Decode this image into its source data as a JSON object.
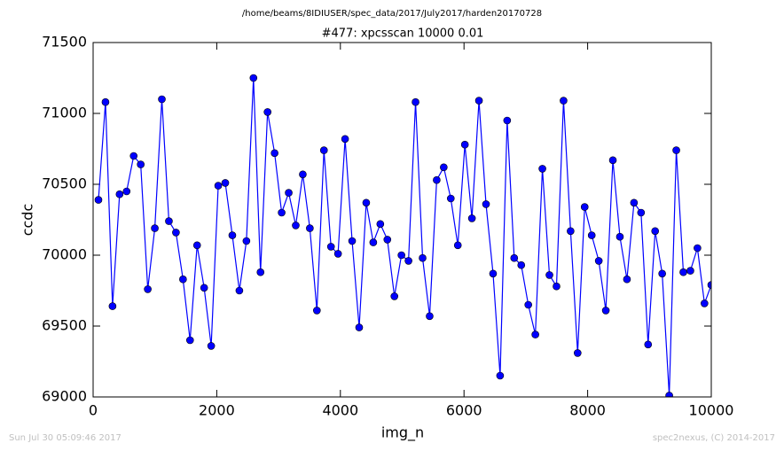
{
  "chart_data": {
    "type": "line",
    "suptitle": "/home/beams/8IDIUSER/spec_data/2017/July2017/harden20170728",
    "title": "#477: xpcsscan 10000 0.01",
    "x_label": "img_n",
    "y_label": "ccdc",
    "footer_left": "Sun Jul 30 05:09:46 2017",
    "footer_right": "spec2nexus, (C) 2014-2017",
    "x": [
      86,
      200,
      314,
      428,
      542,
      656,
      770,
      884,
      998,
      1112,
      1226,
      1340,
      1454,
      1568,
      1682,
      1796,
      1910,
      2024,
      2138,
      2252,
      2366,
      2480,
      2594,
      2708,
      2822,
      2936,
      3050,
      3164,
      3278,
      3392,
      3506,
      3620,
      3734,
      3848,
      3962,
      4076,
      4190,
      4304,
      4418,
      4532,
      4646,
      4760,
      4874,
      4988,
      5102,
      5216,
      5330,
      5444,
      5558,
      5672,
      5786,
      5900,
      6014,
      6128,
      6242,
      6356,
      6470,
      6584,
      6698,
      6812,
      6926,
      7040,
      7154,
      7268,
      7382,
      7496,
      7610,
      7724,
      7838,
      7952,
      8066,
      8180,
      8294,
      8408,
      8522,
      8636,
      8750,
      8864,
      8978,
      9092,
      9206,
      9320,
      9434,
      9548,
      9662,
      9776,
      9890,
      10000
    ],
    "series": [
      {
        "name": "ccdc",
        "color": "#0000ff",
        "marker_edge": "#000000",
        "values": [
          70390,
          71080,
          69640,
          70430,
          70450,
          70700,
          70640,
          69760,
          70190,
          71100,
          70240,
          70160,
          69830,
          69400,
          70070,
          69770,
          69360,
          70490,
          70510,
          70140,
          69750,
          70100,
          71250,
          69880,
          71010,
          70720,
          70300,
          70440,
          70210,
          70570,
          70190,
          69610,
          70740,
          70060,
          70010,
          70820,
          70100,
          69490,
          70370,
          70090,
          70220,
          70110,
          69710,
          70000,
          69960,
          71080,
          69980,
          69570,
          70530,
          70620,
          70400,
          70070,
          70780,
          70260,
          71090,
          70360,
          69870,
          69150,
          70950,
          69980,
          69930,
          69650,
          69440,
          70610,
          69860,
          69780,
          71090,
          70170,
          69310,
          70340,
          70140,
          69960,
          69610,
          70670,
          70130,
          69830,
          70370,
          70300,
          69370,
          70170,
          69870,
          69010,
          70740,
          69880,
          69890,
          70050,
          69660,
          69790
        ]
      }
    ],
    "xlim": [
      0,
      10000
    ],
    "ylim": [
      69000,
      71500
    ],
    "xticks": [
      0,
      2000,
      4000,
      6000,
      8000,
      10000
    ],
    "yticks": [
      69000,
      69500,
      70000,
      70500,
      71000,
      71500
    ],
    "grid": false
  }
}
